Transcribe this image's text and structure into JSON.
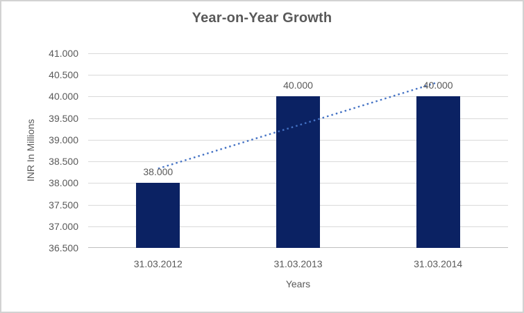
{
  "chart_data": {
    "type": "bar",
    "title": "Year-on-Year Growth",
    "categories": [
      "31.03.2012",
      "31.03.2013",
      "31.03.2014"
    ],
    "values": [
      38.0,
      40.0,
      40.0
    ],
    "data_labels": [
      "38.000",
      "40.000",
      "40.000"
    ],
    "xlabel": "Years",
    "ylabel": "INR In Millions",
    "ylim": [
      36.5,
      41.0
    ],
    "ytick_step": 0.5,
    "ytick_labels": [
      "41.000",
      "40.500",
      "40.000",
      "39.500",
      "39.000",
      "38.500",
      "38.000",
      "37.500",
      "37.000",
      "36.500"
    ],
    "grid": "horizontal",
    "legend": "none",
    "trendline": {
      "type": "linear",
      "style": "dotted",
      "color": "#4472c4",
      "fit_values": [
        38.333,
        39.333,
        40.333
      ]
    },
    "colors": {
      "bar": "#0b2263",
      "grid": "#d9d9d9",
      "axis_line": "#bfbfbf",
      "text": "#595959",
      "title": "#595959",
      "border": "#d2d2d2"
    }
  }
}
